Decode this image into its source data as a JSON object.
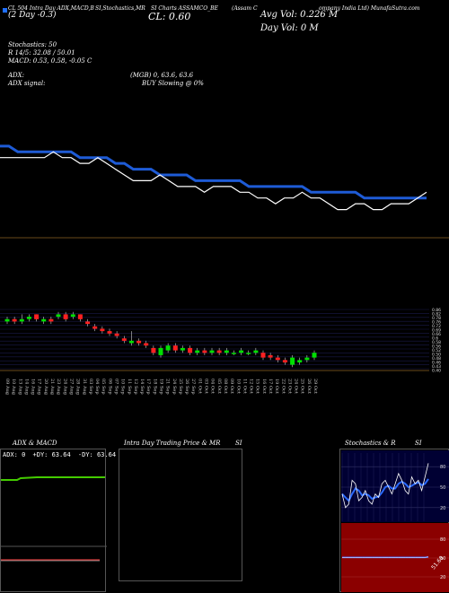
{
  "header": {
    "legend_square_color": "#1f6fff",
    "line1_left": "CL 504 Intra Day ADX,MACD,B",
    "line1_mid1": "SI,Stochastics,MR",
    "line1_mid2": "SI Charts  ASSAMCO_BE",
    "line1_right": "(Assam C",
    "line1_far": "ompany India Ltd) MunafaSutra.com",
    "day_change": "(2 Day -0.3)",
    "close_label": "CL: 0.60",
    "avg_vol": "Avg Vol: 0.226  M",
    "day_vol": "Day Vol: 0  M",
    "stoch_line1": "Stochastics: 50",
    "stoch_line2": "R                    14/5: 32.08 / 50.01",
    "macd_line": "MACD: 0.53, 0.58, -0.05 C",
    "adx_label": "ADX:",
    "adx_values": "(MGB) 0, 63.6, 63.6",
    "adx_signal_label": "ADX  signal:",
    "adx_signal_value": "BUY Slowing @ 0%"
  },
  "price_axis_labels": [
    "0.86",
    "0.82",
    "0.78",
    "0.76",
    "0.72",
    "0.69",
    "0.66",
    "0.6",
    "0.58",
    "0.56",
    "0.52",
    "0.50",
    "0.48",
    "0.46",
    "0.43",
    "0.40"
  ],
  "date_labels": [
    "09 Aug",
    "10 Aug",
    "13 Aug",
    "14 Aug",
    "16 Aug",
    "17 Aug",
    "20 Aug",
    "21 Aug",
    "23 Aug",
    "24 Aug",
    "27 Aug",
    "28 Aug",
    "31 Aug",
    "03 Sep",
    "04 Sep",
    "05 Sep",
    "06 Sep",
    "07 Sep",
    "10 Sep",
    "11 Sep",
    "12 Sep",
    "14 Sep",
    "17 Sep",
    "18 Sep",
    "19 Sep",
    "21 Sep",
    "24 Sep",
    "25 Sep",
    "26 Sep",
    "27 Sep",
    "01 Oct",
    "03 Oct",
    "04 Oct",
    "05 Oct",
    "08 Oct",
    "09 Oct",
    "10 Oct",
    "11 Oct",
    "12 Oct",
    "15 Oct",
    "16 Oct",
    "17 Oct",
    "19 Oct",
    "22 Oct",
    "23 Oct",
    "24 Oct",
    "25 Oct",
    "26 Oct",
    "29 Oct"
  ],
  "bottom_panels": {
    "adx_title": "ADX  & MACD",
    "adx_readout_1": "ADX: 0",
    "adx_readout_2": "+DY: 63.64",
    "adx_readout_3": "-DY: 63.64",
    "intraday_title": "Intra  Day Trading Price  & MR",
    "intraday_title_right": "SI",
    "stoch_title": "Stochastics & R",
    "stoch_title_right": "SI",
    "stoch_ticks": [
      "80",
      "50",
      "20"
    ],
    "rsi_ticks": [
      "80",
      "50",
      "20"
    ],
    "rsi_label": "51.68"
  },
  "colors": {
    "ma_blue": "#1e5bd6",
    "price_white": "#ffffff",
    "bull": "#00e000",
    "bear": "#ff2020",
    "adx_green": "#44cc00",
    "rsi_bg": "#8b0000",
    "stoch_bg": "#000033",
    "stoch_blue": "#2b6bff"
  },
  "chart_data": [
    {
      "type": "line",
      "panel": "price-and-moving-average",
      "series": [
        {
          "values": [
            0.74,
            0.74,
            0.74,
            0.74,
            0.74,
            0.74,
            0.75,
            0.74,
            0.74,
            0.73,
            0.73,
            0.74,
            0.73,
            0.72,
            0.71,
            0.7,
            0.7,
            0.7,
            0.71,
            0.7,
            0.69,
            0.69,
            0.69,
            0.68,
            0.69,
            0.69,
            0.69,
            0.68,
            0.68,
            0.67,
            0.67,
            0.66,
            0.67,
            0.67,
            0.68,
            0.67,
            0.67,
            0.66,
            0.65,
            0.65,
            0.66,
            0.66,
            0.65,
            0.65,
            0.66,
            0.66,
            0.66,
            0.67,
            0.68
          ]
        },
        {
          "values": [
            0.76,
            0.76,
            0.75,
            0.75,
            0.75,
            0.75,
            0.75,
            0.75,
            0.75,
            0.74,
            0.74,
            0.74,
            0.74,
            0.73,
            0.73,
            0.72,
            0.72,
            0.72,
            0.71,
            0.71,
            0.71,
            0.71,
            0.7,
            0.7,
            0.7,
            0.7,
            0.7,
            0.7,
            0.69,
            0.69,
            0.69,
            0.69,
            0.69,
            0.69,
            0.69,
            0.68,
            0.68,
            0.68,
            0.68,
            0.68,
            0.68,
            0.67,
            0.67,
            0.67,
            0.67,
            0.67,
            0.67,
            0.67,
            0.67
          ]
        }
      ]
    },
    {
      "type": "candlestick",
      "panel": "candles",
      "candles": [
        {
          "o": 0.77,
          "c": 0.78,
          "h": 0.79,
          "l": 0.76,
          "dir": "up"
        },
        {
          "o": 0.78,
          "c": 0.77,
          "h": 0.79,
          "l": 0.76,
          "dir": "down"
        },
        {
          "o": 0.77,
          "c": 0.78,
          "h": 0.8,
          "l": 0.76,
          "dir": "up"
        },
        {
          "o": 0.78,
          "c": 0.79,
          "h": 0.8,
          "l": 0.77,
          "dir": "up"
        },
        {
          "o": 0.8,
          "c": 0.78,
          "h": 0.8,
          "l": 0.77,
          "dir": "down"
        },
        {
          "o": 0.77,
          "c": 0.78,
          "h": 0.79,
          "l": 0.76,
          "dir": "up"
        },
        {
          "o": 0.78,
          "c": 0.77,
          "h": 0.79,
          "l": 0.76,
          "dir": "down"
        },
        {
          "o": 0.79,
          "c": 0.8,
          "h": 0.81,
          "l": 0.78,
          "dir": "up"
        },
        {
          "o": 0.8,
          "c": 0.78,
          "h": 0.81,
          "l": 0.77,
          "dir": "down"
        },
        {
          "o": 0.79,
          "c": 0.8,
          "h": 0.81,
          "l": 0.78,
          "dir": "up"
        },
        {
          "o": 0.8,
          "c": 0.78,
          "h": 0.8,
          "l": 0.77,
          "dir": "down"
        },
        {
          "o": 0.77,
          "c": 0.76,
          "h": 0.78,
          "l": 0.75,
          "dir": "down"
        },
        {
          "o": 0.75,
          "c": 0.74,
          "h": 0.76,
          "l": 0.73,
          "dir": "down"
        },
        {
          "o": 0.74,
          "c": 0.73,
          "h": 0.75,
          "l": 0.72,
          "dir": "down"
        },
        {
          "o": 0.73,
          "c": 0.72,
          "h": 0.74,
          "l": 0.71,
          "dir": "down"
        },
        {
          "o": 0.72,
          "c": 0.71,
          "h": 0.73,
          "l": 0.7,
          "dir": "down"
        },
        {
          "o": 0.7,
          "c": 0.69,
          "h": 0.71,
          "l": 0.68,
          "dir": "down"
        },
        {
          "o": 0.68,
          "c": 0.69,
          "h": 0.73,
          "l": 0.67,
          "dir": "up"
        },
        {
          "o": 0.69,
          "c": 0.68,
          "h": 0.7,
          "l": 0.67,
          "dir": "down"
        },
        {
          "o": 0.68,
          "c": 0.67,
          "h": 0.69,
          "l": 0.66,
          "dir": "down"
        },
        {
          "o": 0.66,
          "c": 0.64,
          "h": 0.67,
          "l": 0.63,
          "dir": "down"
        },
        {
          "o": 0.63,
          "c": 0.66,
          "h": 0.67,
          "l": 0.62,
          "dir": "up"
        },
        {
          "o": 0.65,
          "c": 0.67,
          "h": 0.68,
          "l": 0.64,
          "dir": "up"
        },
        {
          "o": 0.67,
          "c": 0.65,
          "h": 0.68,
          "l": 0.64,
          "dir": "down"
        },
        {
          "o": 0.65,
          "c": 0.66,
          "h": 0.67,
          "l": 0.64,
          "dir": "up"
        },
        {
          "o": 0.66,
          "c": 0.64,
          "h": 0.67,
          "l": 0.63,
          "dir": "down"
        },
        {
          "o": 0.64,
          "c": 0.65,
          "h": 0.66,
          "l": 0.63,
          "dir": "up"
        },
        {
          "o": 0.65,
          "c": 0.64,
          "h": 0.66,
          "l": 0.63,
          "dir": "down"
        },
        {
          "o": 0.64,
          "c": 0.65,
          "h": 0.66,
          "l": 0.63,
          "dir": "up"
        },
        {
          "o": 0.65,
          "c": 0.64,
          "h": 0.66,
          "l": 0.63,
          "dir": "down"
        },
        {
          "o": 0.64,
          "c": 0.65,
          "h": 0.66,
          "l": 0.63,
          "dir": "up"
        },
        {
          "o": 0.64,
          "c": 0.64,
          "h": 0.65,
          "l": 0.63,
          "dir": "up"
        },
        {
          "o": 0.64,
          "c": 0.65,
          "h": 0.66,
          "l": 0.63,
          "dir": "up"
        },
        {
          "o": 0.64,
          "c": 0.64,
          "h": 0.65,
          "l": 0.63,
          "dir": "up"
        },
        {
          "o": 0.64,
          "c": 0.65,
          "h": 0.66,
          "l": 0.63,
          "dir": "up"
        },
        {
          "o": 0.64,
          "c": 0.62,
          "h": 0.65,
          "l": 0.61,
          "dir": "down"
        },
        {
          "o": 0.63,
          "c": 0.62,
          "h": 0.64,
          "l": 0.61,
          "dir": "down"
        },
        {
          "o": 0.62,
          "c": 0.61,
          "h": 0.63,
          "l": 0.6,
          "dir": "down"
        },
        {
          "o": 0.61,
          "c": 0.6,
          "h": 0.62,
          "l": 0.59,
          "dir": "down"
        },
        {
          "o": 0.59,
          "c": 0.62,
          "h": 0.63,
          "l": 0.58,
          "dir": "up"
        },
        {
          "o": 0.6,
          "c": 0.61,
          "h": 0.62,
          "l": 0.59,
          "dir": "up"
        },
        {
          "o": 0.61,
          "c": 0.62,
          "h": 0.63,
          "l": 0.6,
          "dir": "up"
        },
        {
          "o": 0.62,
          "c": 0.64,
          "h": 0.65,
          "l": 0.61,
          "dir": "up"
        }
      ]
    },
    {
      "type": "line",
      "panel": "stochastics",
      "series": [
        {
          "values": [
            40,
            20,
            25,
            60,
            55,
            30,
            35,
            45,
            30,
            25,
            40,
            35,
            55,
            60,
            50,
            40,
            55,
            70,
            60,
            45,
            40,
            65,
            55,
            60,
            45,
            65,
            85
          ]
        },
        {
          "values": [
            40,
            35,
            30,
            40,
            48,
            45,
            38,
            40,
            38,
            33,
            35,
            36,
            42,
            50,
            52,
            48,
            48,
            55,
            58,
            55,
            50,
            52,
            55,
            57,
            53,
            55,
            62
          ]
        }
      ]
    },
    {
      "type": "line",
      "panel": "rsi",
      "series": [
        {
          "values": [
            51,
            51,
            51,
            51,
            51,
            51,
            51,
            51,
            51,
            51,
            51,
            51,
            51,
            51,
            51,
            51,
            51,
            51,
            51,
            51,
            51,
            51,
            51,
            51,
            51,
            51,
            51.68
          ]
        }
      ]
    }
  ]
}
